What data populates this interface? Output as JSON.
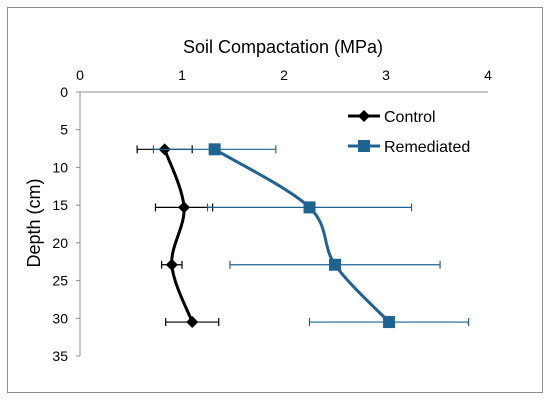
{
  "chart_data": {
    "type": "line",
    "title": "Soil Compactation  (MPa)",
    "xlabel": "Soil Compactation  (MPa)",
    "ylabel": "Depth (cm)",
    "x_axis_position": "top",
    "y_axis_inverted": true,
    "xlim": [
      0,
      4
    ],
    "ylim": [
      0,
      35
    ],
    "x_ticks": [
      "0",
      "1",
      "2",
      "3",
      "4"
    ],
    "y_ticks": [
      "0",
      "5",
      "10",
      "15",
      "20",
      "25",
      "30",
      "35"
    ],
    "grid": false,
    "smooth_lines": true,
    "legend": {
      "position": "top-right"
    },
    "series": [
      {
        "name": "Control",
        "color": "#000000",
        "marker": "diamond",
        "points": [
          {
            "x": 0.83,
            "y": 7.6,
            "err": 0.27
          },
          {
            "x": 1.02,
            "y": 15.3,
            "err": 0.28
          },
          {
            "x": 0.9,
            "y": 22.9,
            "err": 0.1
          },
          {
            "x": 1.1,
            "y": 30.5,
            "err": 0.26
          }
        ]
      },
      {
        "name": "Remediated",
        "color": "#1f6391",
        "marker": "square",
        "points": [
          {
            "x": 1.32,
            "y": 7.6,
            "err": 0.6
          },
          {
            "x": 2.25,
            "y": 15.3,
            "err": 1.0
          },
          {
            "x": 2.5,
            "y": 22.9,
            "err": 1.03
          },
          {
            "x": 3.03,
            "y": 30.5,
            "err": 0.78
          }
        ]
      }
    ]
  }
}
